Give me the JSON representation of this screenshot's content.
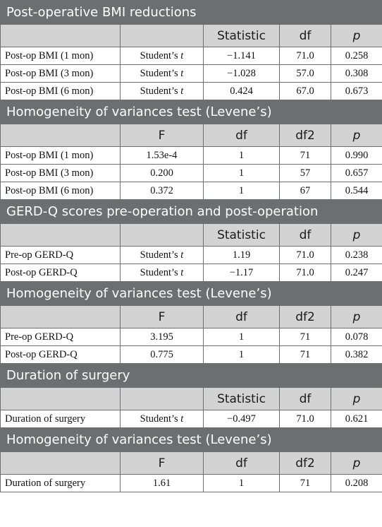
{
  "sections": [
    {
      "title": "Post-operative BMI reductions",
      "headers": [
        "",
        "",
        "Statistic",
        "df",
        "p"
      ],
      "rows": [
        {
          "label": "Post-op BMI (1 mon)",
          "test": "Student’s",
          "test_var": "t",
          "values": [
            "−1.141",
            "71.0",
            "0.258"
          ]
        },
        {
          "label": "Post-op BMI (3 mon)",
          "test": "Student’s",
          "test_var": "t",
          "values": [
            "−1.028",
            "57.0",
            "0.308"
          ]
        },
        {
          "label": "Post-op BMI (6 mon)",
          "test": "Student’s",
          "test_var": "t",
          "values": [
            "0.424",
            "67.0",
            "0.673"
          ]
        }
      ]
    },
    {
      "title": "Homogeneity of variances test (Levene’s)",
      "headers": [
        "",
        "F",
        "df",
        "df2",
        "p"
      ],
      "rows": [
        {
          "label": "Post-op BMI (1 mon)",
          "values": [
            "1.53e-4",
            "1",
            "71",
            "0.990"
          ]
        },
        {
          "label": "Post-op BMI (3 mon)",
          "values": [
            "0.200",
            "1",
            "57",
            "0.657"
          ]
        },
        {
          "label": "Post-op BMI (6 mon)",
          "values": [
            "0.372",
            "1",
            "67",
            "0.544"
          ]
        }
      ]
    },
    {
      "title": "GERD-Q scores pre-operation and post-operation",
      "headers": [
        "",
        "",
        "Statistic",
        "df",
        "p"
      ],
      "rows": [
        {
          "label": "Pre-op GERD-Q",
          "test": "Student’s",
          "test_var": "t",
          "values": [
            "1.19",
            "71.0",
            "0.238"
          ]
        },
        {
          "label": "Post-op GERD-Q",
          "test": "Student’s",
          "test_var": "t",
          "values": [
            "−1.17",
            "71.0",
            "0.247"
          ]
        }
      ]
    },
    {
      "title": "Homogeneity of variances test (Levene’s)",
      "headers": [
        "",
        "F",
        "df",
        "df2",
        "p"
      ],
      "rows": [
        {
          "label": "Pre-op GERD-Q",
          "values": [
            "3.195",
            "1",
            "71",
            "0.078"
          ]
        },
        {
          "label": "Post-op GERD-Q",
          "values": [
            "0.775",
            "1",
            "71",
            "0.382"
          ]
        }
      ]
    },
    {
      "title": "Duration of surgery",
      "headers": [
        "",
        "",
        "Statistic",
        "df",
        "p"
      ],
      "rows": [
        {
          "label": "Duration of surgery",
          "test": "Student’s",
          "test_var": "t",
          "values": [
            "−0.497",
            "71.0",
            "0.621"
          ]
        }
      ]
    },
    {
      "title": "Homogeneity of variances test (Levene’s)",
      "headers": [
        "",
        "F",
        "df",
        "df2",
        "p"
      ],
      "rows": [
        {
          "label": "Duration of surgery",
          "values": [
            "1.61",
            "1",
            "71",
            "0.208"
          ]
        }
      ]
    }
  ]
}
